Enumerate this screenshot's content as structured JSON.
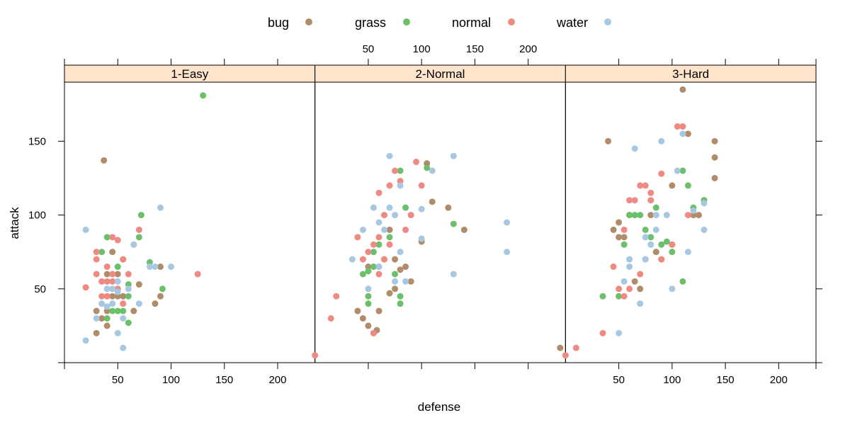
{
  "chart_data": {
    "type": "scatter",
    "xlabel": "defense",
    "ylabel": "attack",
    "xlim": [
      0,
      235
    ],
    "ylim": [
      0,
      190
    ],
    "xticks": [
      50,
      100,
      150,
      200
    ],
    "yticks": [
      50,
      100,
      150
    ],
    "panels": [
      "1-Easy",
      "2-Normal",
      "3-Hard"
    ],
    "legend": {
      "position": "top",
      "entries": [
        {
          "name": "bug",
          "color": "#B08C6A"
        },
        {
          "name": "grass",
          "color": "#6CBF6B"
        },
        {
          "name": "normal",
          "color": "#EE8A82"
        },
        {
          "name": "water",
          "color": "#A6C8E2"
        }
      ]
    },
    "series": [
      {
        "name": "bug",
        "panels": {
          "1-Easy": [
            [
              37,
              137
            ],
            [
              30,
              20
            ],
            [
              30,
              35
            ],
            [
              35,
              30
            ],
            [
              40,
              60
            ],
            [
              45,
              75
            ],
            [
              40,
              25
            ],
            [
              40,
              35
            ],
            [
              50,
              45
            ],
            [
              55,
              70
            ],
            [
              50,
              60
            ],
            [
              55,
              45
            ],
            [
              70,
              53
            ],
            [
              85,
              40
            ],
            [
              90,
              45
            ],
            [
              90,
              65
            ],
            [
              65,
              35
            ],
            [
              50,
              50
            ],
            [
              45,
              45
            ]
          ],
          "2-Normal": [
            [
              230,
              10
            ],
            [
              40,
              35
            ],
            [
              45,
              30
            ],
            [
              50,
              25
            ],
            [
              55,
              20
            ],
            [
              60,
              35
            ],
            [
              58,
              22
            ],
            [
              60,
              65
            ],
            [
              70,
              90
            ],
            [
              75,
              70
            ],
            [
              80,
              63
            ],
            [
              75,
              50
            ],
            [
              85,
              65
            ],
            [
              90,
              55
            ],
            [
              100,
              82
            ],
            [
              105,
              135
            ],
            [
              110,
              109
            ],
            [
              125,
              105
            ],
            [
              140,
              90
            ],
            [
              70,
              47
            ],
            [
              50,
              65
            ]
          ],
          "3-Hard": [
            [
              40,
              150
            ],
            [
              45,
              90
            ],
            [
              50,
              95
            ],
            [
              50,
              85
            ],
            [
              55,
              85
            ],
            [
              60,
              100
            ],
            [
              65,
              55
            ],
            [
              70,
              50
            ],
            [
              75,
              70
            ],
            [
              80,
              100
            ],
            [
              85,
              75
            ],
            [
              90,
              70
            ],
            [
              100,
              120
            ],
            [
              110,
              185
            ],
            [
              115,
              155
            ],
            [
              125,
              100
            ],
            [
              130,
              110
            ],
            [
              140,
              150
            ],
            [
              140,
              139
            ],
            [
              140,
              125
            ],
            [
              120,
              100
            ]
          ]
        }
      },
      {
        "name": "grass",
        "panels": {
          "1-Easy": [
            [
              130,
              181
            ],
            [
              35,
              75
            ],
            [
              40,
              85
            ],
            [
              45,
              35
            ],
            [
              50,
              65
            ],
            [
              55,
              35
            ],
            [
              60,
              27
            ],
            [
              60,
              53
            ],
            [
              70,
              85
            ],
            [
              72,
              100
            ],
            [
              80,
              68
            ],
            [
              92,
              50
            ],
            [
              50,
              35
            ],
            [
              40,
              30
            ],
            [
              60,
              45
            ]
          ],
          "2-Normal": [
            [
              45,
              60
            ],
            [
              50,
              40
            ],
            [
              50,
              45
            ],
            [
              55,
              75
            ],
            [
              60,
              80
            ],
            [
              65,
              70
            ],
            [
              70,
              85
            ],
            [
              80,
              130
            ],
            [
              80,
              40
            ],
            [
              80,
              45
            ],
            [
              85,
              105
            ],
            [
              105,
              132
            ],
            [
              130,
              94
            ],
            [
              50,
              62
            ],
            [
              55,
              65
            ],
            [
              75,
              60
            ]
          ],
          "3-Hard": [
            [
              35,
              45
            ],
            [
              50,
              45
            ],
            [
              55,
              80
            ],
            [
              60,
              100
            ],
            [
              65,
              100
            ],
            [
              70,
              100
            ],
            [
              75,
              90
            ],
            [
              80,
              110
            ],
            [
              85,
              105
            ],
            [
              90,
              80
            ],
            [
              95,
              82
            ],
            [
              100,
              80
            ],
            [
              110,
              130
            ],
            [
              110,
              55
            ],
            [
              120,
              105
            ],
            [
              130,
              110
            ],
            [
              115,
              120
            ],
            [
              100,
              75
            ],
            [
              80,
              85
            ]
          ]
        }
      },
      {
        "name": "normal",
        "panels": {
          "1-Easy": [
            [
              20,
              51
            ],
            [
              30,
              75
            ],
            [
              30,
              60
            ],
            [
              35,
              55
            ],
            [
              40,
              45
            ],
            [
              45,
              85
            ],
            [
              50,
              83
            ],
            [
              55,
              70
            ],
            [
              60,
              60
            ],
            [
              70,
              90
            ],
            [
              125,
              60
            ],
            [
              30,
              70
            ],
            [
              35,
              45
            ],
            [
              40,
              55
            ],
            [
              45,
              60
            ],
            [
              50,
              50
            ],
            [
              55,
              40
            ],
            [
              40,
              65
            ],
            [
              45,
              55
            ],
            [
              65,
              80
            ]
          ],
          "2-Normal": [
            [
              0,
              5
            ],
            [
              15,
              30
            ],
            [
              20,
              45
            ],
            [
              40,
              85
            ],
            [
              45,
              70
            ],
            [
              50,
              75
            ],
            [
              55,
              80
            ],
            [
              60,
              85
            ],
            [
              60,
              115
            ],
            [
              65,
              100
            ],
            [
              70,
              120
            ],
            [
              75,
              130
            ],
            [
              80,
              123
            ],
            [
              90,
              100
            ],
            [
              95,
              136
            ],
            [
              55,
              20
            ],
            [
              60,
              60
            ],
            [
              65,
              70
            ],
            [
              70,
              80
            ],
            [
              85,
              90
            ],
            [
              100,
              120
            ]
          ],
          "3-Hard": [
            [
              0,
              5
            ],
            [
              10,
              10
            ],
            [
              35,
              20
            ],
            [
              45,
              65
            ],
            [
              50,
              50
            ],
            [
              55,
              90
            ],
            [
              60,
              110
            ],
            [
              65,
              110
            ],
            [
              70,
              120
            ],
            [
              75,
              120
            ],
            [
              80,
              115
            ],
            [
              90,
              128
            ],
            [
              100,
              80
            ],
            [
              105,
              160
            ],
            [
              110,
              160
            ],
            [
              115,
              100
            ],
            [
              55,
              45
            ],
            [
              60,
              50
            ],
            [
              70,
              60
            ],
            [
              80,
              110
            ],
            [
              90,
              70
            ]
          ]
        }
      },
      {
        "name": "water",
        "panels": {
          "1-Easy": [
            [
              20,
              15
            ],
            [
              20,
              90
            ],
            [
              30,
              30
            ],
            [
              35,
              40
            ],
            [
              40,
              38
            ],
            [
              45,
              50
            ],
            [
              50,
              48
            ],
            [
              55,
              10
            ],
            [
              55,
              30
            ],
            [
              60,
              50
            ],
            [
              65,
              80
            ],
            [
              70,
              40
            ],
            [
              80,
              65
            ],
            [
              85,
              65
            ],
            [
              90,
              105
            ],
            [
              100,
              65
            ],
            [
              50,
              20
            ],
            [
              45,
              40
            ],
            [
              40,
              50
            ],
            [
              50,
              55
            ]
          ],
          "2-Normal": [
            [
              35,
              70
            ],
            [
              45,
              90
            ],
            [
              50,
              50
            ],
            [
              55,
              105
            ],
            [
              60,
              95
            ],
            [
              65,
              90
            ],
            [
              70,
              105
            ],
            [
              70,
              140
            ],
            [
              75,
              100
            ],
            [
              80,
              120
            ],
            [
              80,
              75
            ],
            [
              85,
              55
            ],
            [
              100,
              84
            ],
            [
              100,
              104
            ],
            [
              110,
              130
            ],
            [
              130,
              140
            ],
            [
              130,
              60
            ],
            [
              180,
              95
            ],
            [
              180,
              75
            ],
            [
              60,
              65
            ],
            [
              75,
              55
            ]
          ],
          "3-Hard": [
            [
              50,
              20
            ],
            [
              55,
              55
            ],
            [
              60,
              70
            ],
            [
              65,
              145
            ],
            [
              70,
              40
            ],
            [
              75,
              70
            ],
            [
              80,
              80
            ],
            [
              85,
              90
            ],
            [
              90,
              150
            ],
            [
              95,
              100
            ],
            [
              100,
              50
            ],
            [
              105,
              130
            ],
            [
              110,
              155
            ],
            [
              115,
              75
            ],
            [
              120,
              103
            ],
            [
              130,
              108
            ],
            [
              130,
              90
            ],
            [
              85,
              100
            ],
            [
              75,
              85
            ],
            [
              60,
              65
            ]
          ]
        }
      }
    ]
  }
}
